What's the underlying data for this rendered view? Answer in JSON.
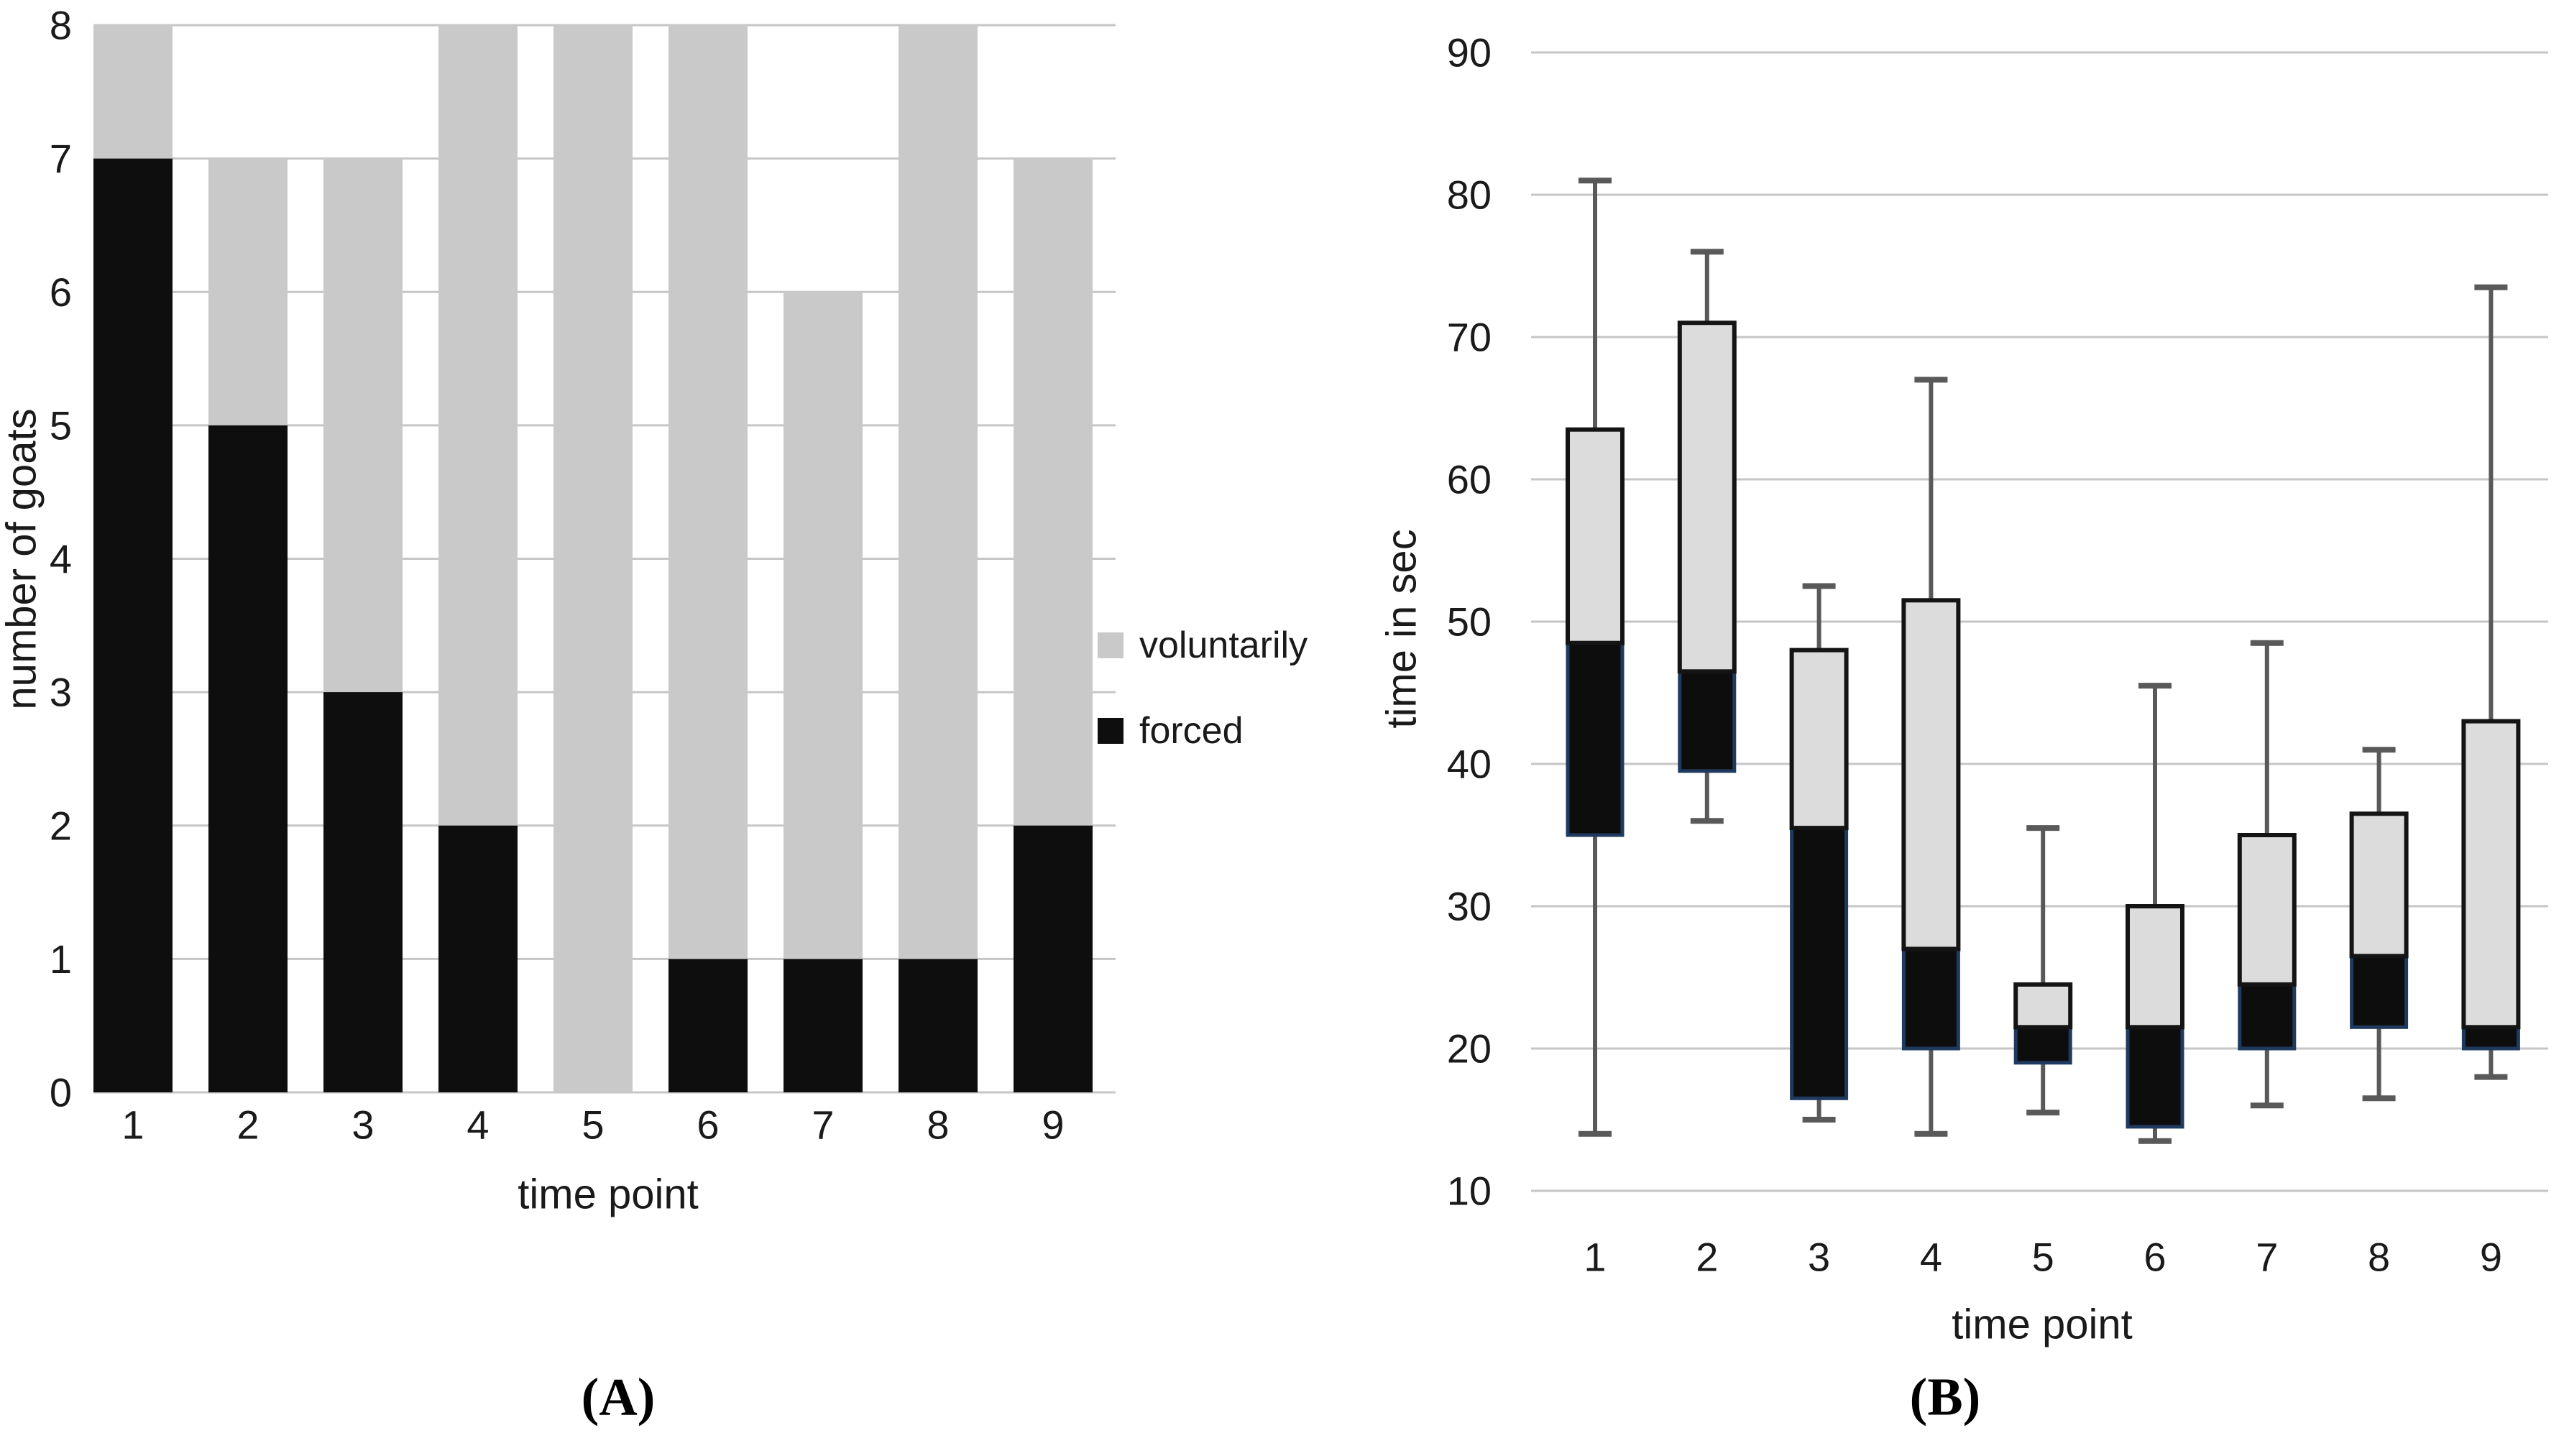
{
  "figure": {
    "captions": {
      "a": "(A)",
      "b": "(B)"
    }
  },
  "colors": {
    "background": "#ffffff",
    "grid": "#c6c6c6",
    "text": "#1a1a1a",
    "bar_gray": "#c9c9c9",
    "bar_black": "#0e0e0e",
    "box_gray_fill": "#dcdcdc",
    "box_gray_border": "#141414",
    "box_black_fill": "#0d0d0d",
    "box_black_border": "#1f3a5f",
    "whisker": "#595959"
  },
  "chart_data": [
    {
      "type": "bar",
      "stacked": true,
      "panel": "A",
      "title": "",
      "xlabel": "time point",
      "ylabel": "number of goats",
      "categories": [
        "1",
        "2",
        "3",
        "4",
        "5",
        "6",
        "7",
        "8",
        "9"
      ],
      "series": [
        {
          "name": "voluntarily",
          "color": "#c9c9c9",
          "values": [
            1,
            2,
            4,
            6,
            8,
            7,
            5,
            7,
            5
          ]
        },
        {
          "name": "forced",
          "color": "#0e0e0e",
          "values": [
            7,
            5,
            3,
            2,
            0,
            1,
            1,
            1,
            2
          ]
        }
      ],
      "totals": [
        8,
        7,
        7,
        8,
        8,
        8,
        6,
        8,
        7
      ],
      "ylim": [
        0,
        8
      ],
      "yticks": [
        0,
        1,
        2,
        3,
        4,
        5,
        6,
        7,
        8
      ],
      "grid": true,
      "legend_position": "right"
    },
    {
      "type": "boxplot",
      "panel": "B",
      "title": "",
      "xlabel": "time point",
      "ylabel": "time in sec",
      "categories": [
        "1",
        "2",
        "3",
        "4",
        "5",
        "6",
        "7",
        "8",
        "9"
      ],
      "ylim": [
        10,
        90
      ],
      "yticks": [
        10,
        20,
        30,
        40,
        50,
        60,
        70,
        80,
        90
      ],
      "grid": true,
      "boxes": [
        {
          "label": "1",
          "min": 14,
          "q1": 35,
          "median": 48.5,
          "q3": 63.5,
          "max": 81
        },
        {
          "label": "2",
          "min": 36,
          "q1": 39.5,
          "median": 46.5,
          "q3": 71,
          "max": 76
        },
        {
          "label": "3",
          "min": 15,
          "q1": 16.5,
          "median": 35.5,
          "q3": 48,
          "max": 52.5
        },
        {
          "label": "4",
          "min": 14,
          "q1": 20,
          "median": 27,
          "q3": 51.5,
          "max": 67
        },
        {
          "label": "5",
          "min": 15.5,
          "q1": 19,
          "median": 21.5,
          "q3": 24.5,
          "max": 35.5
        },
        {
          "label": "6",
          "min": 13.5,
          "q1": 14.5,
          "median": 21.5,
          "q3": 30,
          "max": 45.5
        },
        {
          "label": "7",
          "min": 16,
          "q1": 20,
          "median": 24.5,
          "q3": 35,
          "max": 48.5
        },
        {
          "label": "8",
          "min": 16.5,
          "q1": 21.5,
          "median": 26.5,
          "q3": 36.5,
          "max": 41
        },
        {
          "label": "9",
          "min": 18,
          "q1": 20,
          "median": 21.5,
          "q3": 43,
          "max": 73.5
        }
      ]
    }
  ]
}
